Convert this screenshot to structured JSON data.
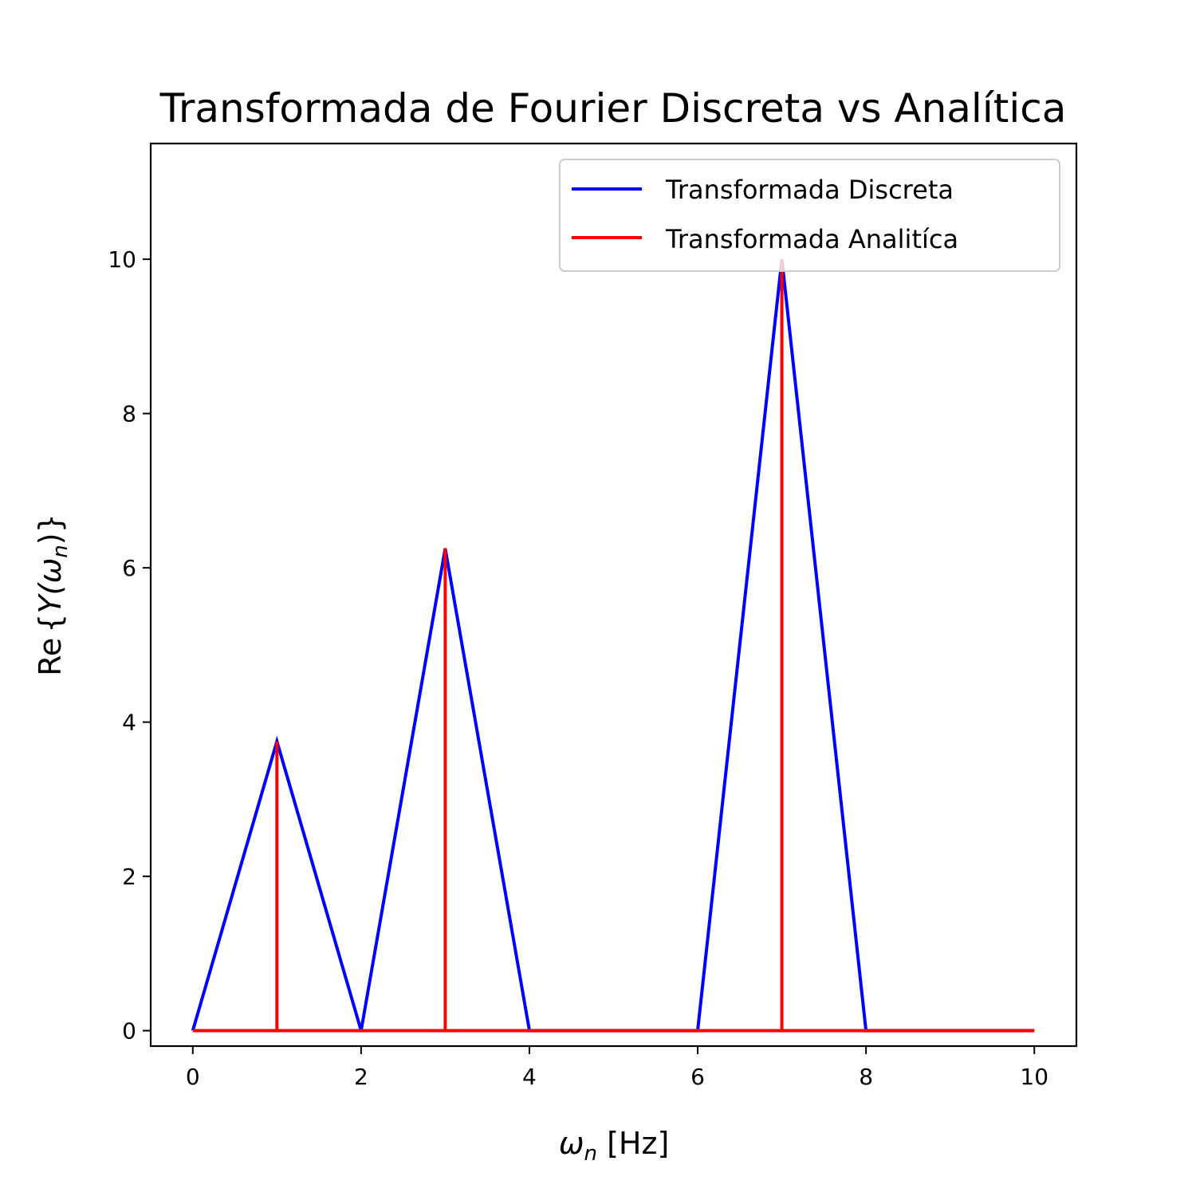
{
  "chart_data": {
    "type": "line",
    "title": "Transformada de Fourier Discreta vs Analítica",
    "xlabel_main": "ω",
    "xlabel_sub": "n",
    "xlabel_unit": " [Hz]",
    "ylabel_prefix": "Re",
    "ylabel_inner": "Y(ω",
    "ylabel_sub": "n",
    "ylabel_close": ")",
    "xlim": [
      -0.5,
      10.5
    ],
    "ylim": [
      -0.2,
      11.5
    ],
    "xticks": [
      0,
      2,
      4,
      6,
      8,
      10
    ],
    "yticks": [
      0,
      2,
      4,
      6,
      8,
      10
    ],
    "grid": false,
    "legend_position": "top-right",
    "series": [
      {
        "name": "Transformada Discreta",
        "color": "#0000ff",
        "style": "line",
        "x": [
          0,
          1,
          2,
          3,
          4,
          5,
          6,
          7,
          8,
          9,
          10
        ],
        "y": [
          0,
          3.75,
          0,
          6.25,
          0,
          0,
          0,
          10,
          0,
          0,
          0
        ]
      },
      {
        "name": "Transformada Analitíca",
        "color": "#ff0000",
        "style": "stem",
        "x": [
          0,
          1,
          3,
          7,
          10
        ],
        "y": [
          0,
          3.75,
          6.25,
          10,
          0
        ]
      }
    ]
  }
}
